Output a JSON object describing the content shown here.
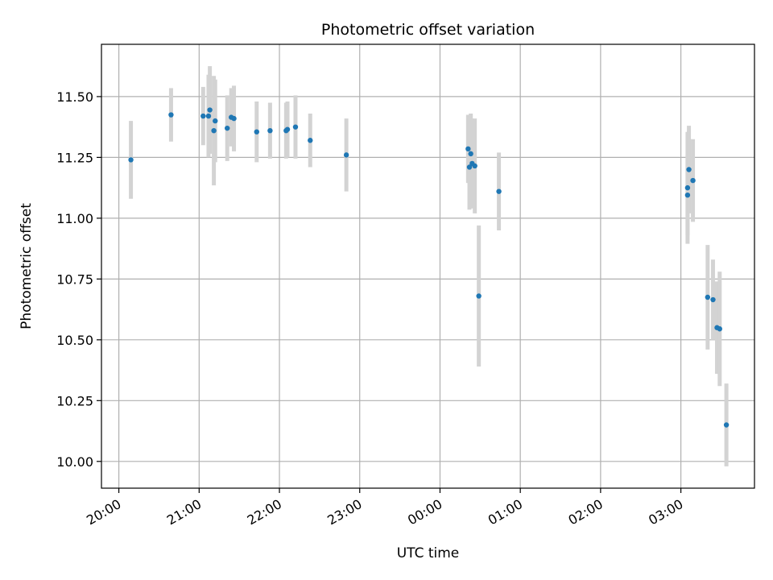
{
  "chart_data": {
    "type": "scatter",
    "title": "Photometric offset variation",
    "xlabel": "UTC time",
    "ylabel": "Photometric offset",
    "x_axis": "time",
    "xlim": [
      "19:47",
      "27:55"
    ],
    "ylim": [
      9.89,
      11.715
    ],
    "grid": true,
    "legend": "none",
    "colors": {
      "point": "#1f77b4",
      "error_bar": "#d3d3d3",
      "grid": "#b0b0b0"
    },
    "x_ticks": [
      "20:00",
      "21:00",
      "22:00",
      "23:00",
      "00:00",
      "01:00",
      "02:00",
      "03:00"
    ],
    "y_ticks": [
      "10.00",
      "10.25",
      "10.50",
      "10.75",
      "11.00",
      "11.25",
      "11.50"
    ],
    "series": [
      {
        "points": [
          {
            "x": "20:09",
            "y": 11.24,
            "err": 0.16
          },
          {
            "x": "20:39",
            "y": 11.425,
            "err": 0.11
          },
          {
            "x": "21:03",
            "y": 11.42,
            "err": 0.12
          },
          {
            "x": "21:07",
            "y": 11.42,
            "err": 0.17
          },
          {
            "x": "21:08",
            "y": 11.445,
            "err": 0.18
          },
          {
            "x": "21:11",
            "y": 11.36,
            "err": 0.225
          },
          {
            "x": "21:12",
            "y": 11.4,
            "err": 0.17
          },
          {
            "x": "21:21",
            "y": 11.37,
            "err": 0.135
          },
          {
            "x": "21:24",
            "y": 11.415,
            "err": 0.12
          },
          {
            "x": "21:26",
            "y": 11.41,
            "err": 0.135
          },
          {
            "x": "21:43",
            "y": 11.355,
            "err": 0.125
          },
          {
            "x": "21:53",
            "y": 11.36,
            "err": 0.115
          },
          {
            "x": "22:05",
            "y": 11.36,
            "err": 0.115
          },
          {
            "x": "22:06",
            "y": 11.365,
            "err": 0.115
          },
          {
            "x": "22:12",
            "y": 11.375,
            "err": 0.13
          },
          {
            "x": "22:23",
            "y": 11.32,
            "err": 0.11
          },
          {
            "x": "22:50",
            "y": 11.26,
            "err": 0.15
          },
          {
            "x": "24:21",
            "y": 11.285,
            "err": 0.14
          },
          {
            "x": "24:22",
            "y": 11.21,
            "err": 0.175
          },
          {
            "x": "24:23",
            "y": 11.265,
            "err": 0.165
          },
          {
            "x": "24:24",
            "y": 11.225,
            "err": 0.185
          },
          {
            "x": "24:26",
            "y": 11.215,
            "err": 0.195
          },
          {
            "x": "24:29",
            "y": 10.68,
            "err": 0.29
          },
          {
            "x": "24:44",
            "y": 11.11,
            "err": 0.16
          },
          {
            "x": "27:05",
            "y": 11.095,
            "err": 0.165
          },
          {
            "x": "27:05",
            "y": 11.125,
            "err": 0.23
          },
          {
            "x": "27:06",
            "y": 11.2,
            "err": 0.18
          },
          {
            "x": "27:09",
            "y": 11.155,
            "err": 0.17
          },
          {
            "x": "27:20",
            "y": 10.675,
            "err": 0.215
          },
          {
            "x": "27:24",
            "y": 10.665,
            "err": 0.165
          },
          {
            "x": "27:27",
            "y": 10.55,
            "err": 0.19
          },
          {
            "x": "27:29",
            "y": 10.545,
            "err": 0.235
          },
          {
            "x": "27:34",
            "y": 10.15,
            "err": 0.17
          }
        ]
      }
    ]
  }
}
